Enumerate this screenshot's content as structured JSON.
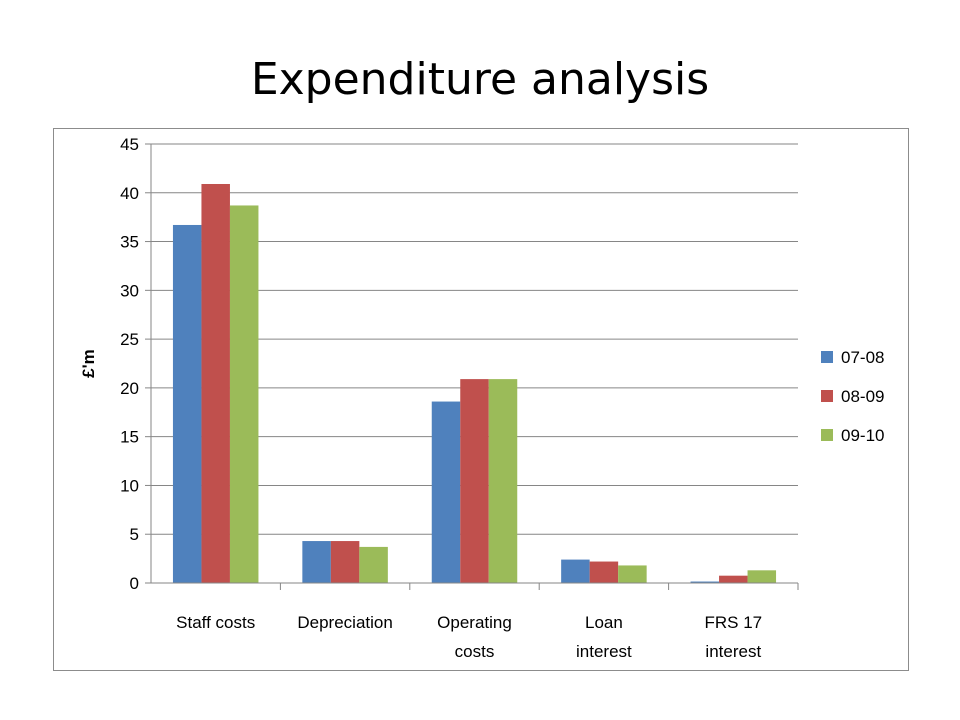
{
  "slide": {
    "title": "Expenditure analysis"
  },
  "chart_data": {
    "type": "bar",
    "title": "",
    "xlabel": "",
    "ylabel": "£'m",
    "ylim": [
      0,
      45
    ],
    "yticks": [
      0,
      5,
      10,
      15,
      20,
      25,
      30,
      35,
      40,
      45
    ],
    "grid": true,
    "legend": "right",
    "categories": [
      [
        "Staff costs"
      ],
      [
        "Depreciation"
      ],
      [
        "Operating",
        "costs"
      ],
      [
        "Loan",
        "interest"
      ],
      [
        "FRS 17",
        "interest"
      ]
    ],
    "series": [
      {
        "name": "07-08",
        "color": "#4f81bd",
        "values": [
          36.7,
          4.3,
          18.6,
          2.4,
          0.15
        ]
      },
      {
        "name": "08-09",
        "color": "#c0504d",
        "values": [
          40.9,
          4.3,
          20.9,
          2.2,
          0.75
        ]
      },
      {
        "name": "09-10",
        "color": "#9bbb59",
        "values": [
          38.7,
          3.7,
          20.9,
          1.8,
          1.3
        ]
      }
    ]
  }
}
